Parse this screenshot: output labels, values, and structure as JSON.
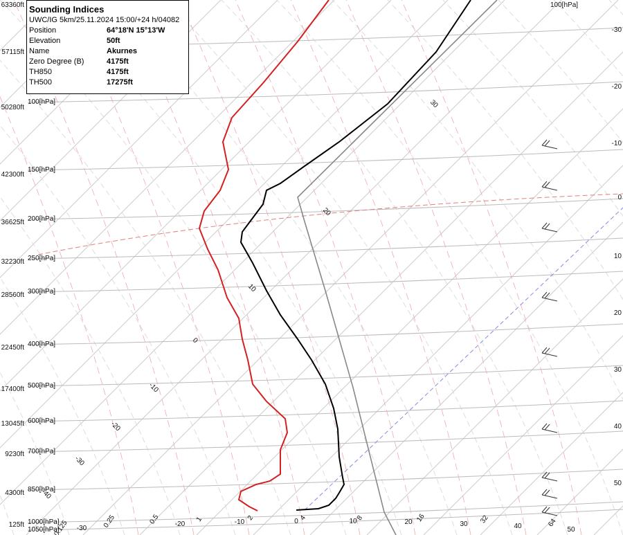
{
  "info": {
    "title": "Sounding Indices",
    "subtitle": "UWC/IG 5km/25.11.2024 15:00/+24 h/04082",
    "rows": [
      [
        "Position",
        "64°18'N 15°13'W"
      ],
      [
        "Elevation",
        "50ft"
      ],
      [
        "Name",
        "Akurnes"
      ],
      [
        "Zero Degree (B)",
        "4175ft"
      ],
      [
        "TH850",
        "4175ft"
      ],
      [
        "TH500",
        "17275ft"
      ]
    ]
  },
  "left_axis": {
    "altitudes": [
      "63360ft",
      "57115ft",
      "50280ft",
      "42300ft",
      "36625ft",
      "32230ft",
      "28560ft",
      "22450ft",
      "17400ft",
      "13045ft",
      "9230ft",
      "4300ft",
      "125ft"
    ],
    "pressures": [
      "100[hPa]",
      "150[hPa]",
      "200[hPa]",
      "250[hPa]",
      "300[hPa]",
      "400[hPa]",
      "500[hPa]",
      "600[hPa]",
      "700[hPa]",
      "850[hPa]",
      "1000[hPa]",
      "1050[hPa]"
    ]
  },
  "top_label": "100[hPa]",
  "right_axis": [
    "-30",
    "-20",
    "-10",
    "0",
    "10",
    "20",
    "30",
    "40",
    "50"
  ],
  "isotherm_labels": [
    "30",
    "20",
    "10",
    "0",
    "-10",
    "-20",
    "-30",
    "-40"
  ],
  "bottom_axis": {
    "mixing_ratios": [
      "0.125",
      "0.25",
      "0.5",
      "1",
      "2",
      "4",
      "8",
      "16",
      "32",
      "64"
    ],
    "temperatures": [
      "-30",
      "-20",
      "-10",
      "0",
      "10",
      "20",
      "30",
      "40",
      "50"
    ]
  }
}
